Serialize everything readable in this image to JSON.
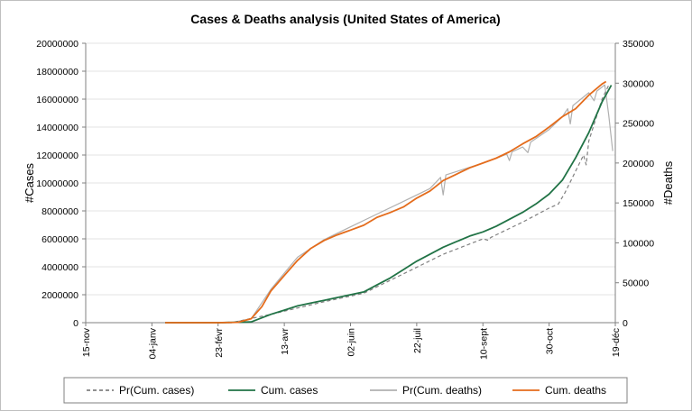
{
  "chart_data": {
    "type": "line",
    "title": "Cases & Deaths analysis (United States of America)",
    "ylabel_left": "#Cases",
    "ylabel_right": "#Deaths",
    "x_ticks": [
      "15-nov",
      "04-janv",
      "23-févr",
      "13-avr",
      "02-juin",
      "22-juil",
      "10-sept",
      "30-oct",
      "19-déc"
    ],
    "ylim_left": [
      0,
      20000000
    ],
    "yticks_left": [
      "0",
      "2000000",
      "4000000",
      "6000000",
      "8000000",
      "10000000",
      "12000000",
      "14000000",
      "16000000",
      "18000000",
      "20000000"
    ],
    "ylim_right": [
      0,
      350000
    ],
    "yticks_right": [
      "0",
      "50000",
      "100000",
      "150000",
      "200000",
      "250000",
      "300000",
      "350000"
    ],
    "x_unit": "days since 15-nov",
    "x_range": [
      0,
      400
    ],
    "legend_position": "bottom",
    "series": [
      {
        "name": "Pr(Cum. cases)",
        "axis": "left",
        "color": "#808080",
        "style": "dashed",
        "points": [
          [
            60,
            0
          ],
          [
            110,
            0
          ],
          [
            140,
            600000
          ],
          [
            180,
            1500000
          ],
          [
            210,
            2100000
          ],
          [
            240,
            3500000
          ],
          [
            270,
            4900000
          ],
          [
            300,
            6000000
          ],
          [
            304,
            5900000
          ],
          [
            306,
            6100000
          ],
          [
            330,
            7200000
          ],
          [
            350,
            8200000
          ],
          [
            357,
            8500000
          ],
          [
            362,
            9300000
          ],
          [
            376,
            12000000
          ],
          [
            378,
            11300000
          ],
          [
            380,
            13000000
          ],
          [
            390,
            16000000
          ],
          [
            395,
            17000000
          ]
        ]
      },
      {
        "name": "Cum. cases",
        "axis": "left",
        "color": "#217346",
        "style": "solid",
        "points": [
          [
            60,
            0
          ],
          [
            100,
            0
          ],
          [
            125,
            50000
          ],
          [
            140,
            600000
          ],
          [
            150,
            900000
          ],
          [
            160,
            1200000
          ],
          [
            170,
            1400000
          ],
          [
            180,
            1600000
          ],
          [
            190,
            1800000
          ],
          [
            200,
            2000000
          ],
          [
            210,
            2200000
          ],
          [
            220,
            2700000
          ],
          [
            230,
            3200000
          ],
          [
            240,
            3800000
          ],
          [
            250,
            4400000
          ],
          [
            260,
            4900000
          ],
          [
            270,
            5400000
          ],
          [
            280,
            5800000
          ],
          [
            290,
            6200000
          ],
          [
            300,
            6500000
          ],
          [
            310,
            6900000
          ],
          [
            320,
            7400000
          ],
          [
            330,
            7900000
          ],
          [
            340,
            8500000
          ],
          [
            350,
            9200000
          ],
          [
            360,
            10200000
          ],
          [
            370,
            11800000
          ],
          [
            380,
            13600000
          ],
          [
            390,
            15800000
          ],
          [
            397,
            17000000
          ]
        ]
      },
      {
        "name": "Pr(Cum. deaths)",
        "axis": "right",
        "color": "#b0b0b0",
        "style": "solid",
        "points": [
          [
            60,
            0
          ],
          [
            110,
            0
          ],
          [
            125,
            5000
          ],
          [
            140,
            42000
          ],
          [
            160,
            82000
          ],
          [
            180,
            104000
          ],
          [
            200,
            120000
          ],
          [
            220,
            136000
          ],
          [
            240,
            152000
          ],
          [
            260,
            168000
          ],
          [
            268,
            182000
          ],
          [
            270,
            160000
          ],
          [
            272,
            185000
          ],
          [
            300,
            200000
          ],
          [
            318,
            211000
          ],
          [
            320,
            203000
          ],
          [
            322,
            214000
          ],
          [
            330,
            220000
          ],
          [
            334,
            213000
          ],
          [
            336,
            226000
          ],
          [
            350,
            242000
          ],
          [
            360,
            258000
          ],
          [
            364,
            268000
          ],
          [
            366,
            249000
          ],
          [
            368,
            272000
          ],
          [
            380,
            288000
          ],
          [
            384,
            278000
          ],
          [
            386,
            290000
          ],
          [
            392,
            298000
          ],
          [
            395,
            260000
          ],
          [
            398,
            215000
          ]
        ]
      },
      {
        "name": "Cum. deaths",
        "axis": "right",
        "color": "#e46c1c",
        "style": "solid",
        "points": [
          [
            60,
            0
          ],
          [
            100,
            0
          ],
          [
            115,
            500
          ],
          [
            125,
            5000
          ],
          [
            133,
            20000
          ],
          [
            140,
            40000
          ],
          [
            150,
            59000
          ],
          [
            160,
            78000
          ],
          [
            170,
            93000
          ],
          [
            180,
            103000
          ],
          [
            190,
            110000
          ],
          [
            200,
            116000
          ],
          [
            210,
            122000
          ],
          [
            220,
            132000
          ],
          [
            230,
            138000
          ],
          [
            240,
            145000
          ],
          [
            250,
            156000
          ],
          [
            260,
            165000
          ],
          [
            270,
            178000
          ],
          [
            280,
            186000
          ],
          [
            290,
            194000
          ],
          [
            300,
            200000
          ],
          [
            310,
            206000
          ],
          [
            320,
            214000
          ],
          [
            330,
            224000
          ],
          [
            340,
            233000
          ],
          [
            350,
            245000
          ],
          [
            360,
            258000
          ],
          [
            370,
            268000
          ],
          [
            380,
            285000
          ],
          [
            390,
            299000
          ],
          [
            393,
            302000
          ]
        ]
      }
    ]
  }
}
